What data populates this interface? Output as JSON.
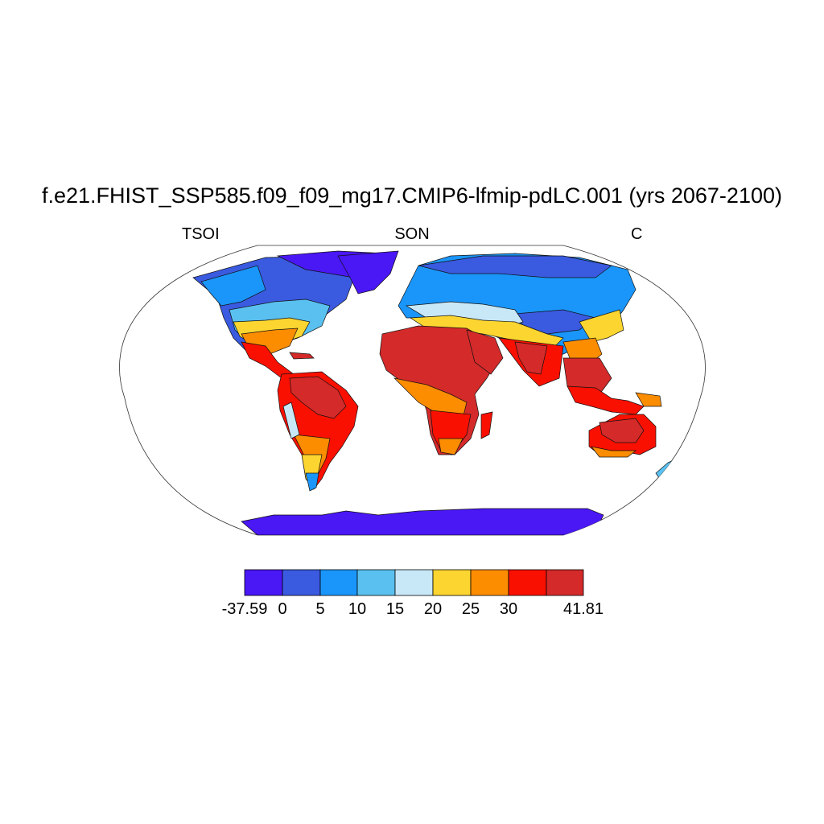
{
  "title": "f.e21.FHIST_SSP585.f09_f09_mg17.CMIP6-lfmip-pdLC.001 (yrs 2067-2100)",
  "labels": {
    "variable": "TSOI",
    "season": "SON",
    "units": "C"
  },
  "colorbar": {
    "colors": [
      "#4a17f5",
      "#3a5ae0",
      "#1a96fa",
      "#5ac0f0",
      "#c8e8f8",
      "#fcd530",
      "#fc8c00",
      "#fa1000",
      "#d42a2a"
    ],
    "tick_labels": [
      "-37.59",
      "0",
      "5",
      "10",
      "15",
      "20",
      "25",
      "30",
      "41.81"
    ]
  },
  "map": {
    "projection": "robinson",
    "ocean_color": "#ffffff",
    "coastline_color": "#000000"
  }
}
